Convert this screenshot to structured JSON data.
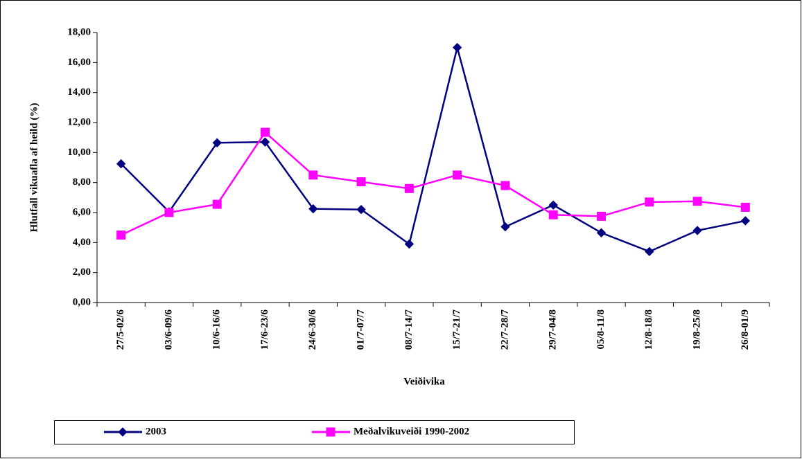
{
  "chart_data": {
    "type": "line",
    "x_label": "Veiðivika",
    "y_label": "Hlutfall vikuafla af heild (%)",
    "categories": [
      "27/5-02/6",
      "03/6-09/6",
      "10/6-16/6",
      "17/6-23/6",
      "24/6-30/6",
      "01/7-07/7",
      "08/7-14/7",
      "15/7-21/7",
      "22/7-28/7",
      "29/7-04/8",
      "05/8-11/8",
      "12/8-18/8",
      "19/8-25/8",
      "26/8-01/9"
    ],
    "series": [
      {
        "name": "2003",
        "color": "#000080",
        "marker": "diamond",
        "values": [
          9.25,
          6.05,
          10.65,
          10.7,
          6.25,
          6.2,
          3.9,
          17.0,
          5.05,
          6.5,
          4.65,
          3.4,
          4.8,
          5.45
        ]
      },
      {
        "name": "Meðalvikuveiði 1990-2002",
        "color": "#ff00ff",
        "marker": "square",
        "values": [
          4.5,
          6.0,
          6.55,
          11.35,
          8.5,
          8.05,
          7.6,
          8.5,
          7.8,
          5.85,
          5.75,
          6.7,
          6.75,
          6.35
        ]
      }
    ],
    "ylim": [
      0,
      18
    ],
    "yticks": [
      {
        "value": 0,
        "label": "0,00"
      },
      {
        "value": 2,
        "label": "2,00"
      },
      {
        "value": 4,
        "label": "4,00"
      },
      {
        "value": 6,
        "label": "6,00"
      },
      {
        "value": 8,
        "label": "8,00"
      },
      {
        "value": 10,
        "label": "10,00"
      },
      {
        "value": 12,
        "label": "12,00"
      },
      {
        "value": 14,
        "label": "14,00"
      },
      {
        "value": 16,
        "label": "16,00"
      },
      {
        "value": 18,
        "label": "18,00"
      }
    ],
    "grid": false,
    "legend": "bottom"
  }
}
